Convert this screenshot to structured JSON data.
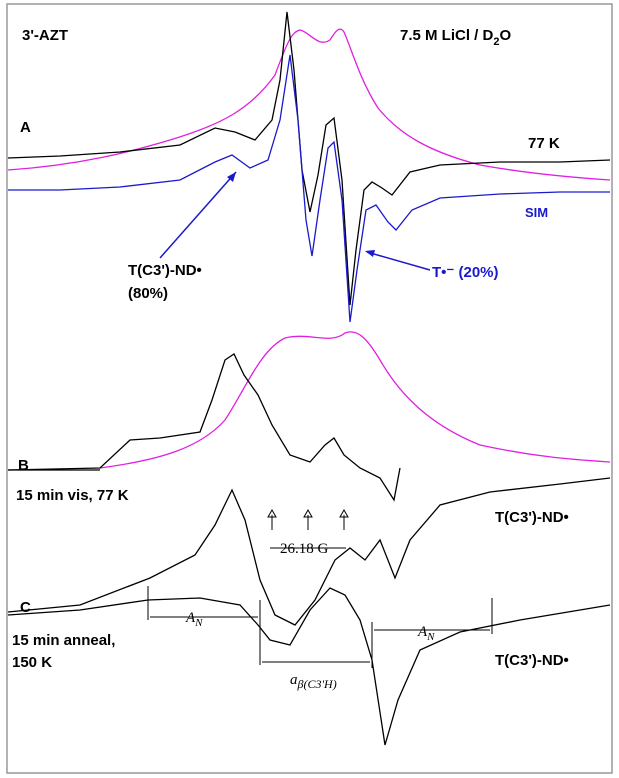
{
  "figure": {
    "title_left": "3'-AZT",
    "title_right": {
      "text": "7.5 M LiCl / D",
      "sub": "2",
      "after": "O"
    },
    "panel_a": {
      "label": "A",
      "temp": "77 K",
      "sim": "SIM",
      "species1": "T(C3')-ND•",
      "species1_pct": "(80%)",
      "species2": "T•⁻ (20%)"
    },
    "panel_b": {
      "label": "B",
      "condition": "15 min vis, 77 K",
      "species": "T(C3')-ND•",
      "spacing": "26.18 G"
    },
    "panel_c": {
      "label": "C",
      "condition1": "15 min anneal,",
      "condition2": "150 K",
      "an_left": {
        "text": "A",
        "sub": "N"
      },
      "an_right": {
        "text": "A",
        "sub": "N"
      },
      "abeta": {
        "text": "a",
        "sub": "β(C3'H)"
      },
      "species": "T(C3')-ND•"
    }
  }
}
